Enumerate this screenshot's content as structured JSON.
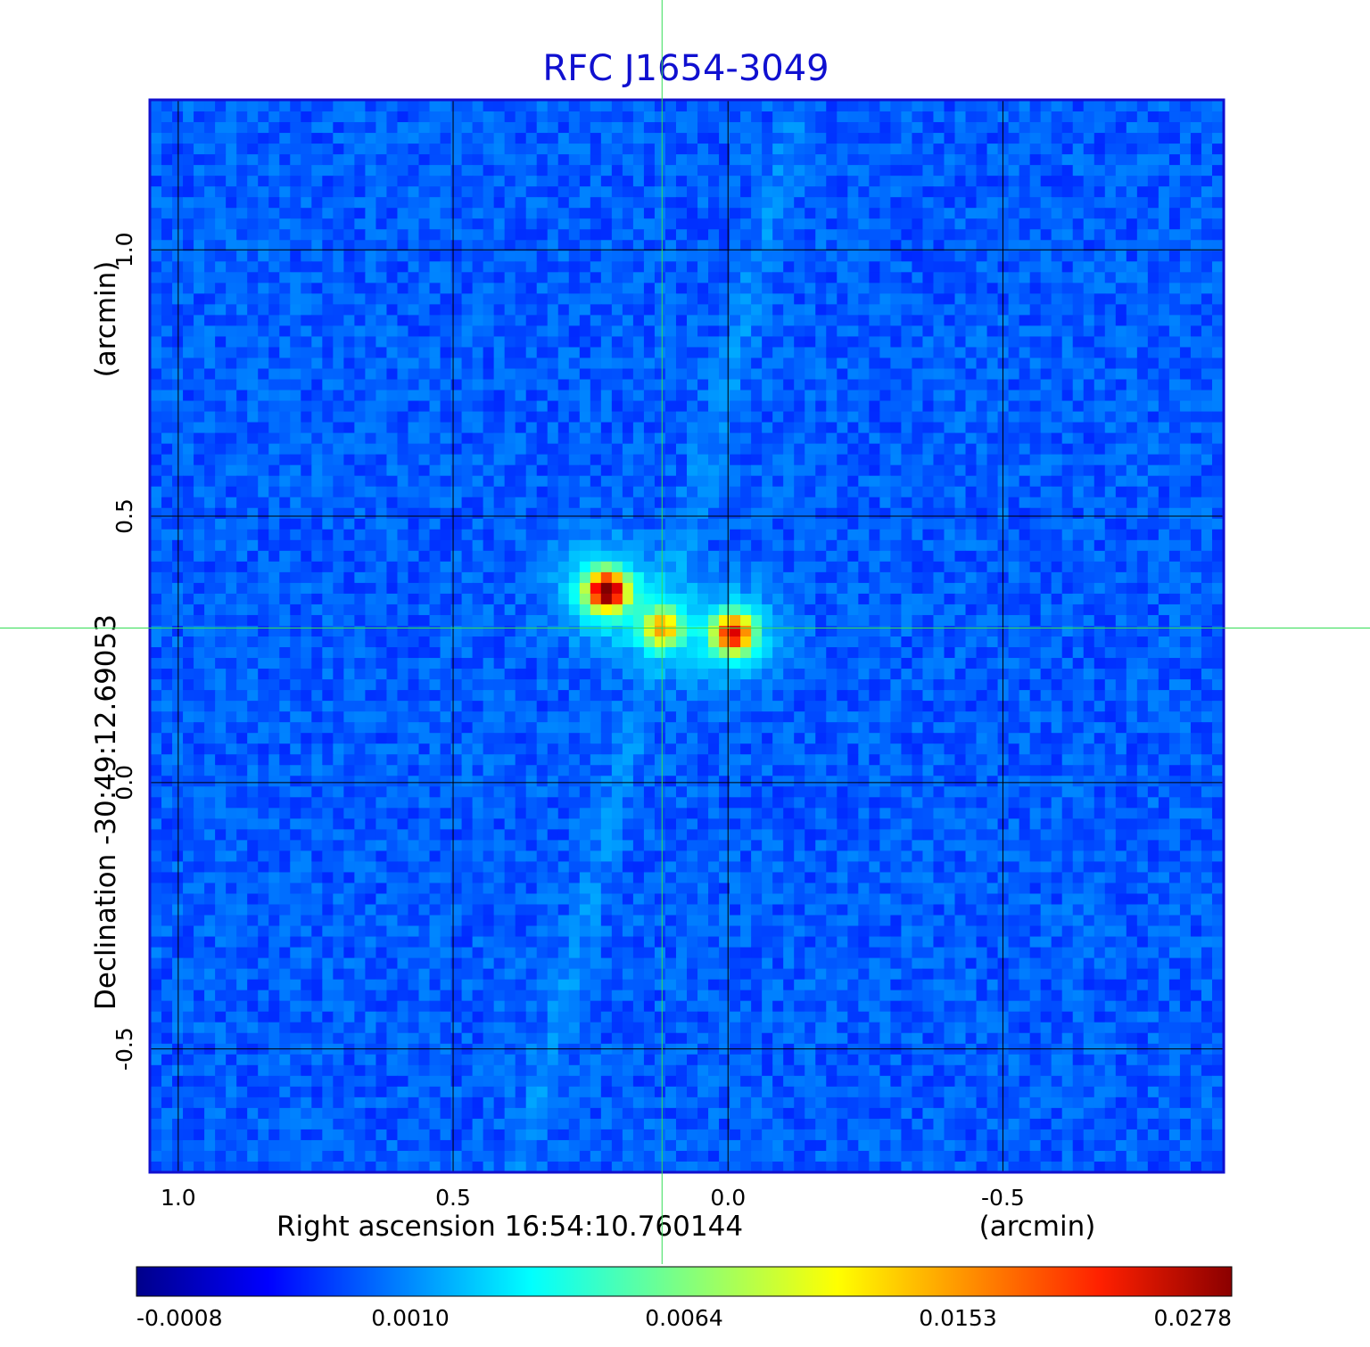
{
  "chart_data": {
    "type": "heatmap",
    "title": "RFC J1654-3049",
    "xlabel": "Right ascension  16:54:10.760144",
    "xunit": "(arcmin)",
    "ylabel": "Declination  -30:49:12.69053",
    "yunit": "(arcmin)",
    "x_axis_reversed": true,
    "xlim": [
      1.05,
      -0.9
    ],
    "ylim": [
      -0.73,
      1.28
    ],
    "x_ticks": [
      {
        "value": 1.0,
        "label": "1.0"
      },
      {
        "value": 0.5,
        "label": "0.5"
      },
      {
        "value": 0.0,
        "label": "0.0"
      },
      {
        "value": -0.5,
        "label": "-0.5"
      }
    ],
    "y_ticks": [
      {
        "value": 1.0,
        "label": "1.0"
      },
      {
        "value": 0.5,
        "label": "0.5"
      },
      {
        "value": 0.0,
        "label": "0.0"
      },
      {
        "value": -0.5,
        "label": "-0.5"
      }
    ],
    "grid": true,
    "crosshair": {
      "x": 0.12,
      "y": 0.29,
      "color": "#33dd55"
    },
    "colorbar": {
      "orientation": "horizontal",
      "colormap": "jet",
      "ticks": [
        {
          "value": -0.0008,
          "label": "-0.0008"
        },
        {
          "value": 0.001,
          "label": "0.0010"
        },
        {
          "value": 0.0064,
          "label": "0.0064"
        },
        {
          "value": 0.0153,
          "label": "0.0153"
        },
        {
          "value": 0.0278,
          "label": "0.0278"
        }
      ]
    },
    "sources": [
      {
        "x": 0.22,
        "y": 0.36,
        "peak": 0.0278
      },
      {
        "x": 0.12,
        "y": 0.29,
        "peak": 0.012
      },
      {
        "x": -0.01,
        "y": 0.28,
        "peak": 0.021
      }
    ],
    "background_level": 0.0002,
    "colors": {
      "frame": "#1010d0",
      "title": "#1010d0",
      "grid": "#000000",
      "crosshair": "#33dd55"
    }
  }
}
